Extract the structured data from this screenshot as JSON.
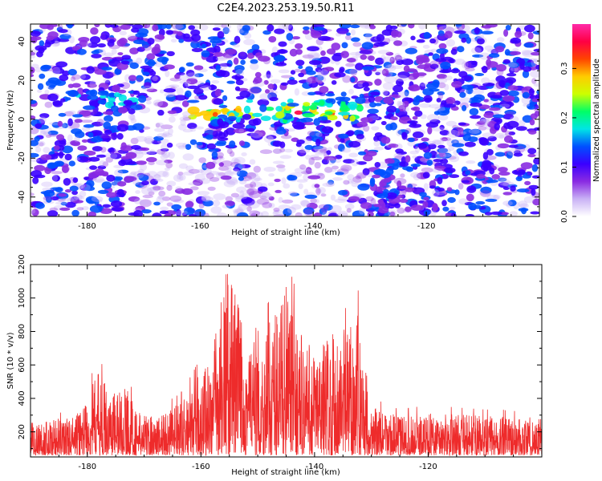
{
  "title": "C2E4.2023.253.19.50.R11",
  "colors": {
    "snr_line": "#ee2b2b",
    "colormap": [
      "#ffffff",
      "#c9b2f5",
      "#8a2be2",
      "#3a00ff",
      "#0050ff",
      "#00e5e5",
      "#00ff66",
      "#ccff00",
      "#ffcc00",
      "#ff4400",
      "#ff0044",
      "#ff2aa8"
    ]
  },
  "chart_data": [
    {
      "type": "heatmap",
      "title": "",
      "xlabel": "Height of straight line (km)",
      "ylabel": "Frequency (Hz)",
      "xlim": [
        -190,
        -100
      ],
      "ylim": [
        -50,
        49
      ],
      "xticks": [
        -180,
        -160,
        -140,
        -120
      ],
      "yticks": [
        -40,
        -20,
        0,
        20,
        40
      ],
      "colorbar": {
        "label": "Normalized spectral amplitude",
        "range": [
          0.0,
          0.39
        ],
        "ticks": [
          "0.0",
          "0.1",
          "0.2",
          "0.3"
        ]
      },
      "features": [
        {
          "x_range": [
            -182,
            -170
          ],
          "freq_center": 10,
          "freq_halfwidth": 10,
          "peak_amplitude": 0.2
        },
        {
          "x_range": [
            -162,
            -131
          ],
          "freq_center": 4,
          "freq_halfwidth": 10,
          "peak_amplitude": 0.36
        }
      ]
    },
    {
      "type": "line",
      "title": "",
      "xlabel": "Height of straight line (km)",
      "ylabel": "SNR (10 * v/v)",
      "xlim": [
        -190,
        -100
      ],
      "ylim": [
        50,
        1200
      ],
      "xticks": [
        -180,
        -160,
        -140,
        -120
      ],
      "yticks": [
        200,
        400,
        600,
        800,
        1000,
        1200
      ],
      "series": [
        {
          "name": "",
          "baseline": 150,
          "envelope": [
            {
              "x": -190,
              "y": 260
            },
            {
              "x": -182,
              "y": 300
            },
            {
              "x": -178,
              "y": 570
            },
            {
              "x": -176,
              "y": 450
            },
            {
              "x": -173,
              "y": 480
            },
            {
              "x": -171,
              "y": 320
            },
            {
              "x": -168,
              "y": 300
            },
            {
              "x": -163,
              "y": 400
            },
            {
              "x": -158,
              "y": 700
            },
            {
              "x": -155.5,
              "y": 1200
            },
            {
              "x": -154,
              "y": 1060
            },
            {
              "x": -152,
              "y": 880
            },
            {
              "x": -150,
              "y": 700
            },
            {
              "x": -147,
              "y": 960
            },
            {
              "x": -145,
              "y": 1100
            },
            {
              "x": -142,
              "y": 780
            },
            {
              "x": -140,
              "y": 700
            },
            {
              "x": -137,
              "y": 820
            },
            {
              "x": -134,
              "y": 840
            },
            {
              "x": -132.5,
              "y": 960
            },
            {
              "x": -131,
              "y": 600
            },
            {
              "x": -130,
              "y": 360
            },
            {
              "x": -125,
              "y": 300
            },
            {
              "x": -120,
              "y": 320
            },
            {
              "x": -110,
              "y": 300
            },
            {
              "x": -100,
              "y": 290
            }
          ]
        }
      ]
    }
  ]
}
